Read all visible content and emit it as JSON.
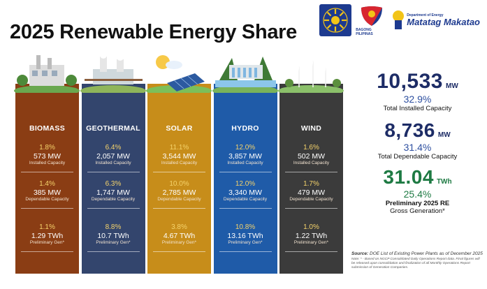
{
  "title": "2025 Renewable Energy Share",
  "logos": {
    "bagong_pilipinas": "BAGONG PILIPINAS",
    "mm_small": "Department of Energy",
    "mm_big": "Matatag Makatao"
  },
  "columns": [
    {
      "name": "BIOMASS",
      "installed_pct": "1.8%",
      "installed": "573 MW",
      "installed_lbl": "Installed Capacity",
      "dependable_pct": "1.4%",
      "dependable": "385 MW",
      "dependable_lbl": "Dependable Capacity",
      "gen_pct": "1.1%",
      "gen": "1.29 TWh",
      "gen_lbl": "Preliminary Gen*",
      "color": "#8a3d14"
    },
    {
      "name": "GEOTHERMAL",
      "installed_pct": "6.4%",
      "installed": "2,057 MW",
      "installed_lbl": "Installed Capacity",
      "dependable_pct": "6.3%",
      "dependable": "1,747 MW",
      "dependable_lbl": "Dependable Capacity",
      "gen_pct": "8.8%",
      "gen": "10.7 TWh",
      "gen_lbl": "Preliminary Gen*",
      "color": "#33456d"
    },
    {
      "name": "SOLAR",
      "installed_pct": "11.1%",
      "installed": "3,544 MW",
      "installed_lbl": "Installed Capacity",
      "dependable_pct": "10.0%",
      "dependable": "2,785 MW",
      "dependable_lbl": "Dependable Capacity",
      "gen_pct": "3.8%",
      "gen": "4.67 TWh",
      "gen_lbl": "Preliminary Gen*",
      "color": "#c78d1a"
    },
    {
      "name": "HYDRO",
      "installed_pct": "12.0%",
      "installed": "3,857 MW",
      "installed_lbl": "Installed Capacity",
      "dependable_pct": "12.0%",
      "dependable": "3,340 MW",
      "dependable_lbl": "Dependable Capacity",
      "gen_pct": "10.8%",
      "gen": "13.16 TWh",
      "gen_lbl": "Preliminary Gen*",
      "color": "#1f5ba8"
    },
    {
      "name": "WIND",
      "installed_pct": "1.6%",
      "installed": "502 MW",
      "installed_lbl": "Installed Capacity",
      "dependable_pct": "1.7%",
      "dependable": "479 MW",
      "dependable_lbl": "Dependable Capacity",
      "gen_pct": "1.0%",
      "gen": "1.22 TWh",
      "gen_lbl": "Preliminary Gen*",
      "color": "#3b3b3b"
    }
  ],
  "totals": {
    "installed_value": "10,533",
    "installed_unit": "MW",
    "installed_pct": "32.9%",
    "installed_lbl": "Total Installed Capacity",
    "dependable_value": "8,736",
    "dependable_unit": "MW",
    "dependable_pct": "31.4%",
    "dependable_lbl": "Total Dependable Capacity",
    "gen_value": "31.04",
    "gen_unit": "TWh",
    "gen_pct": "25.4%",
    "gen_lbl_1": "Preliminary 2025 RE",
    "gen_lbl_2": "Gross Generation*"
  },
  "source": {
    "label": "Source:",
    "text": "DOE List of Existing Power Plants as of December 2025",
    "note": "Note: * - Based on NGCP Consolidated Daily Operations Report data. Final figures will be released upon consolidation and finalization of all Monthly Operations Report submission of Generation Companies."
  },
  "chart_data": {
    "type": "table",
    "title": "2025 Renewable Energy Share",
    "categories": [
      "BIOMASS",
      "GEOTHERMAL",
      "SOLAR",
      "HYDRO",
      "WIND"
    ],
    "series": [
      {
        "name": "Installed Capacity",
        "unit": "MW",
        "values": [
          573,
          2057,
          3544,
          3857,
          502
        ],
        "share_pct": [
          1.8,
          6.4,
          11.1,
          12.0,
          1.6
        ]
      },
      {
        "name": "Dependable Capacity",
        "unit": "MW",
        "values": [
          385,
          1747,
          2785,
          3340,
          479
        ],
        "share_pct": [
          1.4,
          6.3,
          10.0,
          12.0,
          1.7
        ]
      },
      {
        "name": "Preliminary Gen*",
        "unit": "TWh",
        "values": [
          1.29,
          10.7,
          4.67,
          13.16,
          1.22
        ],
        "share_pct": [
          1.1,
          8.8,
          3.8,
          10.8,
          1.0
        ]
      }
    ],
    "totals": {
      "installed_mw": 10533,
      "installed_pct": 32.9,
      "dependable_mw": 8736,
      "dependable_pct": 31.4,
      "generation_twh": 31.04,
      "generation_pct": 25.4
    }
  }
}
